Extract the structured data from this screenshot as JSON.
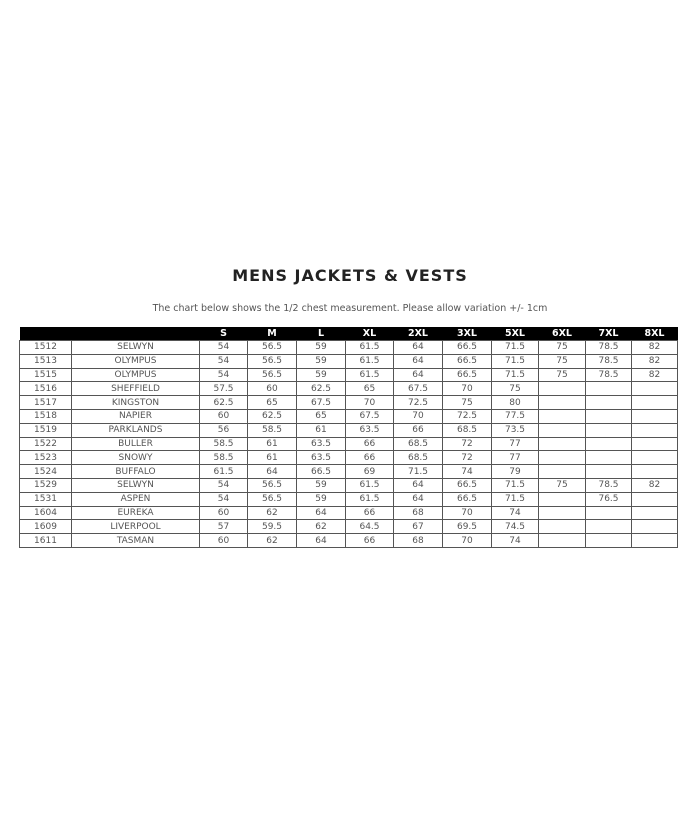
{
  "title": "MENS JACKETS & VESTS",
  "subtitle": "The chart below shows the 1/2 chest measurement. Please allow variation +/- 1cm",
  "table": {
    "headers": [
      "",
      "",
      "S",
      "M",
      "L",
      "XL",
      "2XL",
      "3XL",
      "5XL",
      "6XL",
      "7XL",
      "8XL"
    ],
    "rows": [
      [
        "1512",
        "SELWYN",
        "54",
        "56.5",
        "59",
        "61.5",
        "64",
        "66.5",
        "71.5",
        "75",
        "78.5",
        "82"
      ],
      [
        "1513",
        "OLYMPUS",
        "54",
        "56.5",
        "59",
        "61.5",
        "64",
        "66.5",
        "71.5",
        "75",
        "78.5",
        "82"
      ],
      [
        "1515",
        "OLYMPUS",
        "54",
        "56.5",
        "59",
        "61.5",
        "64",
        "66.5",
        "71.5",
        "75",
        "78.5",
        "82"
      ],
      [
        "1516",
        "SHEFFIELD",
        "57.5",
        "60",
        "62.5",
        "65",
        "67.5",
        "70",
        "75",
        "",
        "",
        ""
      ],
      [
        "1517",
        "KINGSTON",
        "62.5",
        "65",
        "67.5",
        "70",
        "72.5",
        "75",
        "80",
        "",
        "",
        ""
      ],
      [
        "1518",
        "NAPIER",
        "60",
        "62.5",
        "65",
        "67.5",
        "70",
        "72.5",
        "77.5",
        "",
        "",
        ""
      ],
      [
        "1519",
        "PARKLANDS",
        "56",
        "58.5",
        "61",
        "63.5",
        "66",
        "68.5",
        "73.5",
        "",
        "",
        ""
      ],
      [
        "1522",
        "BULLER",
        "58.5",
        "61",
        "63.5",
        "66",
        "68.5",
        "72",
        "77",
        "",
        "",
        ""
      ],
      [
        "1523",
        "SNOWY",
        "58.5",
        "61",
        "63.5",
        "66",
        "68.5",
        "72",
        "77",
        "",
        "",
        ""
      ],
      [
        "1524",
        "BUFFALO",
        "61.5",
        "64",
        "66.5",
        "69",
        "71.5",
        "74",
        "79",
        "",
        "",
        ""
      ],
      [
        "1529",
        "SELWYN",
        "54",
        "56.5",
        "59",
        "61.5",
        "64",
        "66.5",
        "71.5",
        "75",
        "78.5",
        "82"
      ],
      [
        "1531",
        "ASPEN",
        "54",
        "56.5",
        "59",
        "61.5",
        "64",
        "66.5",
        "71.5",
        "",
        "76.5",
        ""
      ],
      [
        "1604",
        "EUREKA",
        "60",
        "62",
        "64",
        "66",
        "68",
        "70",
        "74",
        "",
        "",
        ""
      ],
      [
        "1609",
        "LIVERPOOL",
        "57",
        "59.5",
        "62",
        "64.5",
        "67",
        "69.5",
        "74.5",
        "",
        "",
        ""
      ],
      [
        "1611",
        "TASMAN",
        "60",
        "62",
        "64",
        "66",
        "68",
        "70",
        "74",
        "",
        "",
        ""
      ]
    ]
  }
}
